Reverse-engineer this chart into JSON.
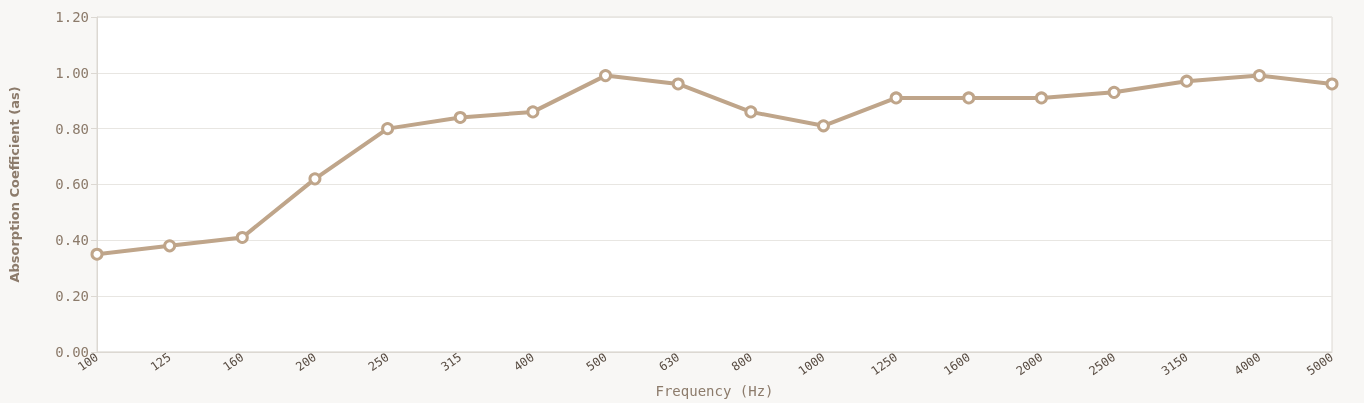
{
  "chart_data": {
    "type": "line",
    "xlabel": "Frequency (Hz)",
    "ylabel": "Absorption Coefficient (as)",
    "categories": [
      "100",
      "125",
      "160",
      "200",
      "250",
      "315",
      "400",
      "500",
      "630",
      "800",
      "1000",
      "1250",
      "1600",
      "2000",
      "2500",
      "3150",
      "4000",
      "5000"
    ],
    "series": [
      {
        "color": "#bfa58a",
        "values": [
          0.35,
          0.38,
          0.41,
          0.62,
          0.8,
          0.84,
          0.86,
          0.99,
          0.96,
          0.86,
          0.81,
          0.91,
          0.91,
          0.91,
          0.93,
          0.97,
          0.99,
          0.96
        ]
      }
    ],
    "ylim": [
      0,
      1.2
    ],
    "yticks": [
      {
        "value": 0,
        "label": "0.00"
      },
      {
        "value": 0.2,
        "label": "0.20"
      },
      {
        "value": 0.4,
        "label": "0.40"
      },
      {
        "value": 0.6,
        "label": "0.60"
      },
      {
        "value": 0.8,
        "label": "0.80"
      },
      {
        "value": 1,
        "label": "1.00"
      },
      {
        "value": 1.2,
        "label": "1.20"
      }
    ],
    "grid": "y",
    "marker": "circle",
    "line_style": "solid"
  }
}
